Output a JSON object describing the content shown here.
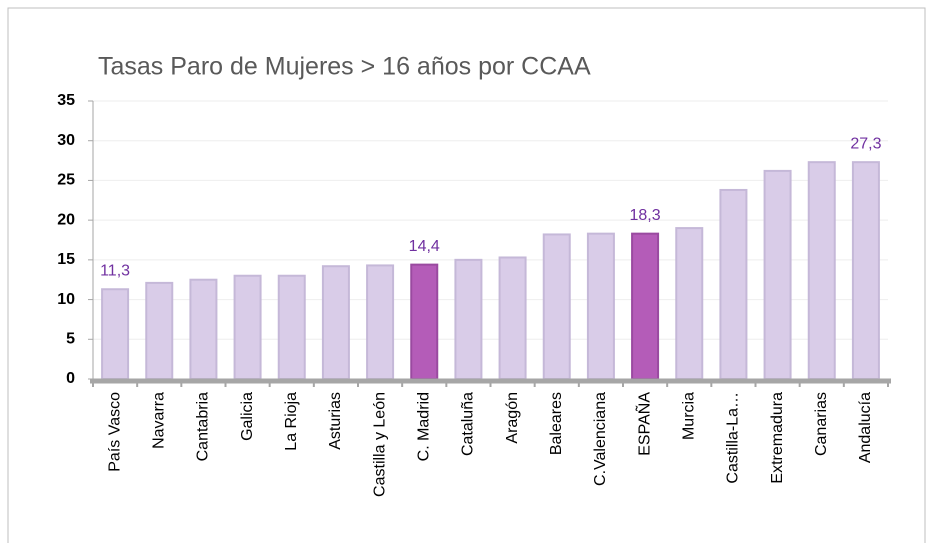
{
  "chart_data": {
    "type": "bar",
    "title": "Tasas Paro de Mujeres > 16 años por CCAA",
    "categories": [
      "País Vasco",
      "Navarra",
      "Cantabria",
      "Galicia",
      "La Rioja",
      "Asturias",
      "Castilla y León",
      "C. Madrid",
      "Cataluña",
      "Aragón",
      "Baleares",
      "C.Valenciana",
      "ESPAÑA",
      "Murcia",
      "Castilla-La…",
      "Extremadura",
      "Canarias",
      "Andalucía"
    ],
    "values": [
      11.3,
      12.1,
      12.5,
      13.0,
      13.0,
      14.2,
      14.3,
      14.4,
      15.0,
      15.3,
      18.2,
      18.3,
      18.3,
      19.0,
      23.8,
      26.2,
      27.3,
      27.3
    ],
    "value_labels": [
      "11,3",
      null,
      null,
      null,
      null,
      null,
      null,
      "14,4",
      null,
      null,
      null,
      null,
      "18,3",
      null,
      null,
      null,
      null,
      "27,3"
    ],
    "colors": [
      "#d9cce8",
      "#d9cce8",
      "#d9cce8",
      "#d9cce8",
      "#d9cce8",
      "#d9cce8",
      "#d9cce8",
      "#b45cb8",
      "#d9cce8",
      "#d9cce8",
      "#d9cce8",
      "#d9cce8",
      "#b45cb8",
      "#d9cce8",
      "#d9cce8",
      "#d9cce8",
      "#d9cce8",
      "#d9cce8"
    ],
    "ylim": [
      0,
      35
    ],
    "yticks": [
      0,
      5,
      10,
      15,
      20,
      25,
      30,
      35
    ],
    "grid": true
  }
}
